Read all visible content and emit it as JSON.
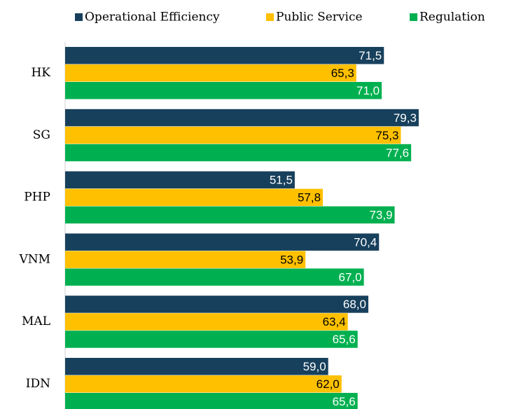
{
  "chart_data": {
    "type": "hbar",
    "categories": [
      "HK",
      "SG",
      "PHP",
      "VNM",
      "MAL",
      "IDN"
    ],
    "series": [
      {
        "name": "Operational Efficiency",
        "color": "#17405c",
        "label_color": "#ffffff",
        "values": [
          71.5,
          79.3,
          51.5,
          70.4,
          68.0,
          59.0
        ],
        "value_labels": [
          "71,5",
          "79,3",
          "51,5",
          "70,4",
          "68,0",
          "59,0"
        ]
      },
      {
        "name": "Public Service",
        "color": "#ffc000",
        "label_color": "#000000",
        "values": [
          65.3,
          75.3,
          57.8,
          53.9,
          63.4,
          62.0
        ],
        "value_labels": [
          "65,3",
          "75,3",
          "57,8",
          "53,9",
          "63,4",
          "62,0"
        ]
      },
      {
        "name": "Regulation",
        "color": "#00b050",
        "label_color": "#ffffff",
        "values": [
          71.0,
          77.6,
          73.9,
          67.0,
          65.6,
          65.6
        ],
        "value_labels": [
          "71,0",
          "77,6",
          "73,9",
          "67,0",
          "65,6",
          "65,6"
        ]
      }
    ],
    "xlim": [
      0,
      98
    ],
    "legend": "top"
  }
}
